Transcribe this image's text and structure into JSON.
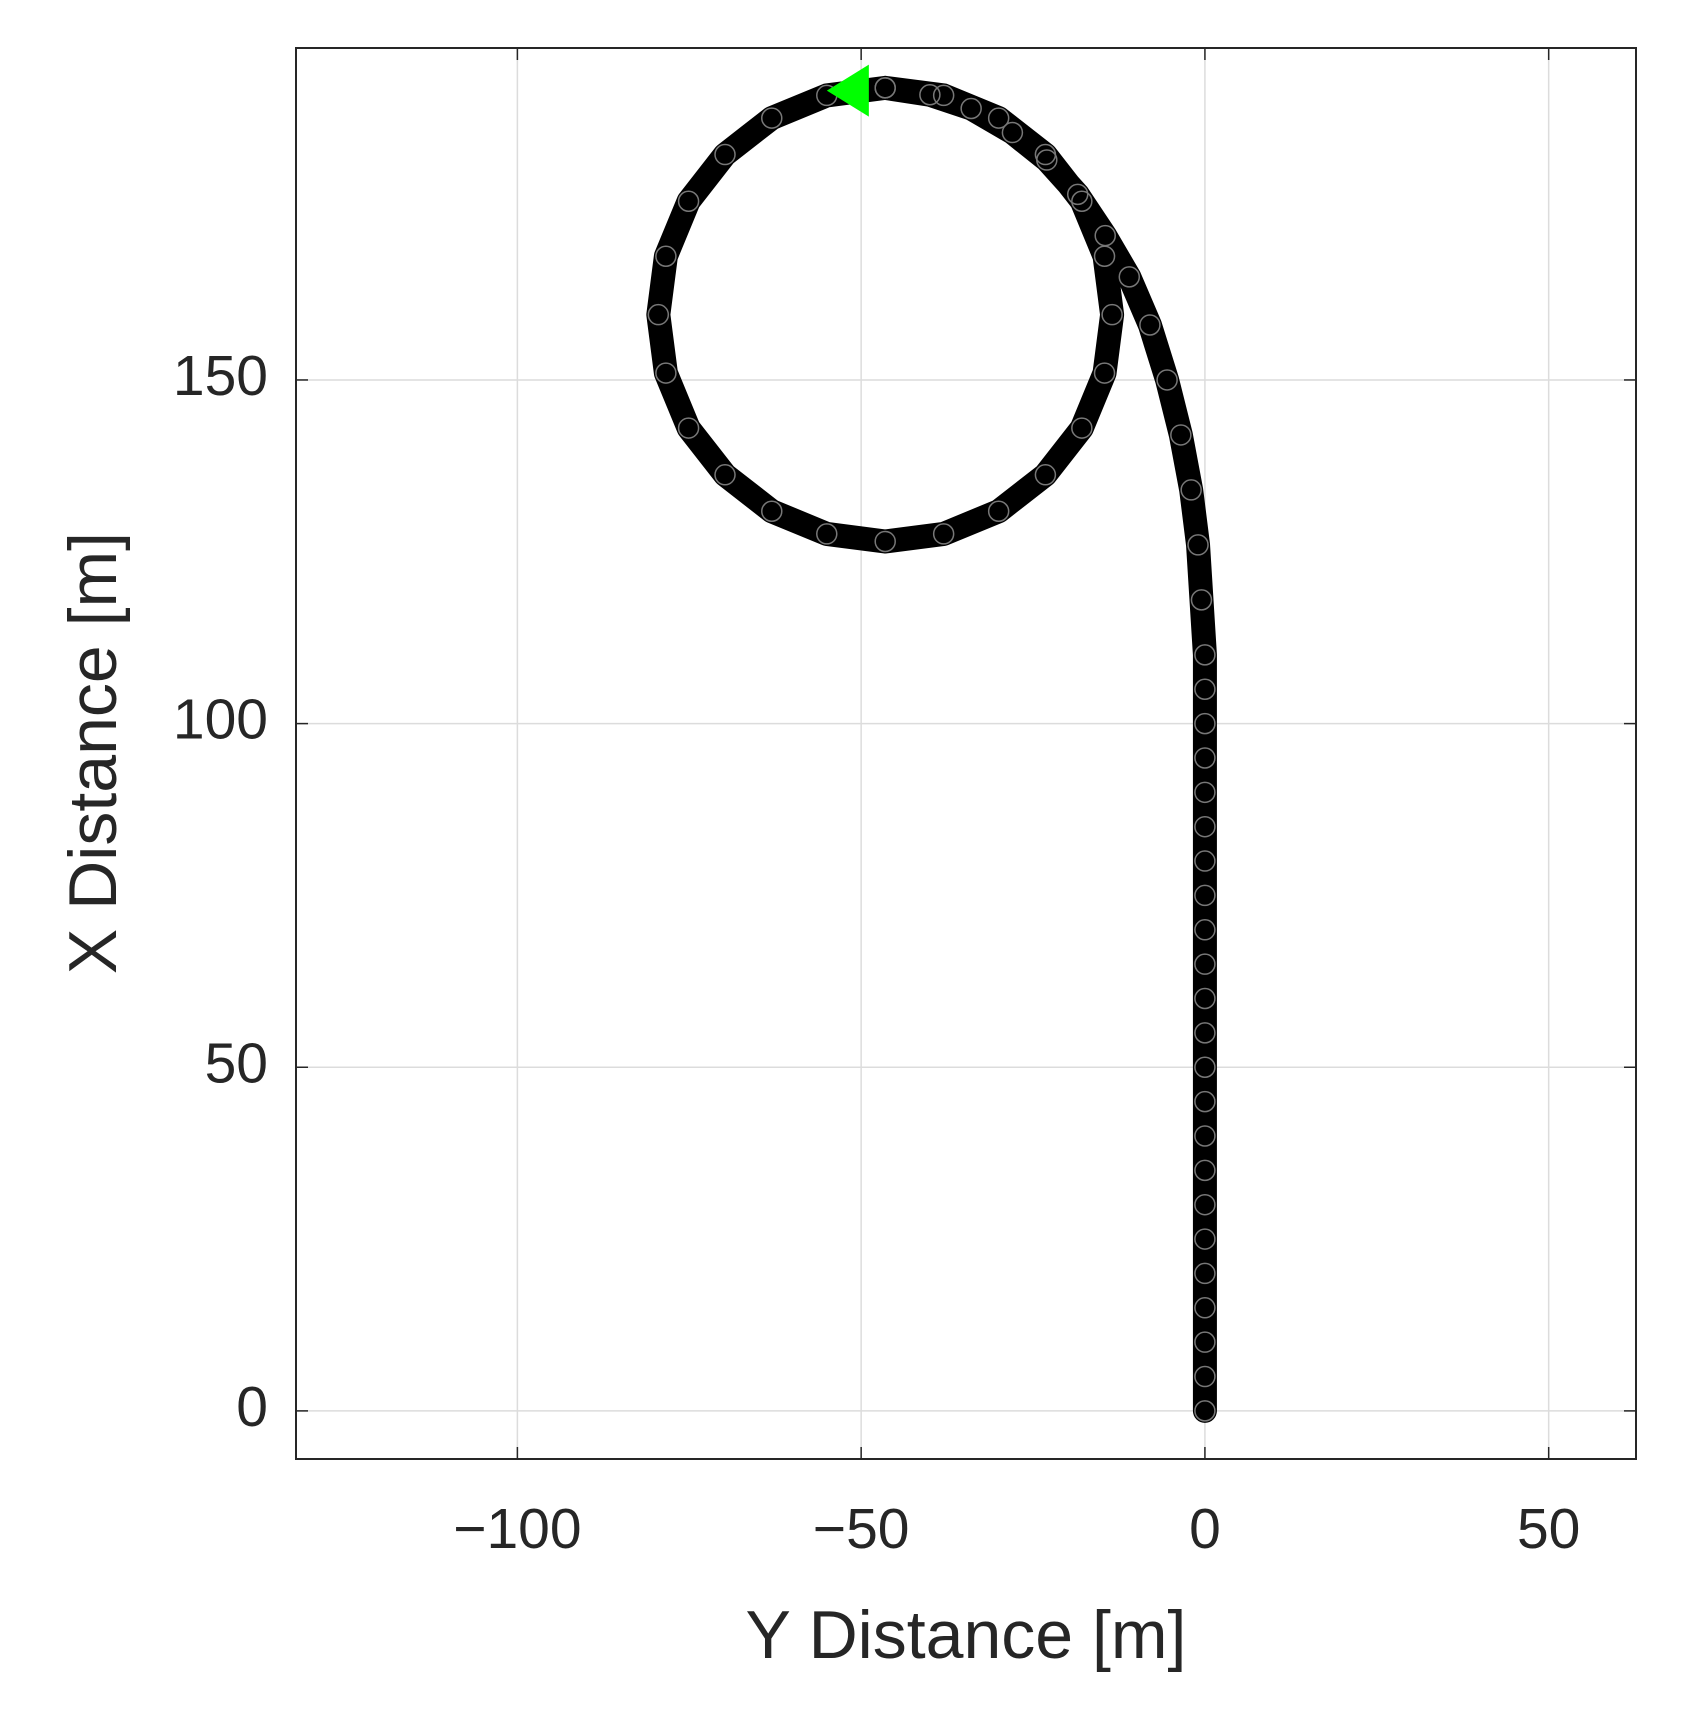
{
  "chart_data": {
    "type": "scatter",
    "xlabel": "Y Distance [m]",
    "ylabel": "X Distance [m]",
    "xlim": [
      -132.2,
      62.7
    ],
    "ylim": [
      -7,
      198.3
    ],
    "xticks": [
      {
        "value": -100,
        "label": "−100"
      },
      {
        "value": -50,
        "label": "−50"
      },
      0,
      50
    ],
    "yticks": [
      0,
      50,
      100,
      150
    ],
    "grid": true,
    "series": [
      {
        "color": "#000000",
        "marker": "o",
        "x": [
          0,
          0,
          0,
          0,
          0,
          0,
          0,
          0,
          0,
          0,
          0,
          0,
          0,
          0,
          0,
          0,
          0,
          0,
          0,
          0,
          0,
          0,
          0,
          -0.5,
          -1,
          -2,
          -3.5,
          -5.5,
          -8,
          -11,
          -14.5,
          -18.5,
          -23,
          -28,
          -34,
          -40,
          -46.5,
          -55.0,
          -63.0,
          -69.8,
          -75.1,
          -78.4,
          -79.5,
          -78.4,
          -75.1,
          -69.8,
          -63.0,
          -55.0,
          -46.5,
          -38.0,
          -30.0,
          -23.2,
          -17.9,
          -14.6,
          -13.5,
          -14.6,
          -17.9,
          -23.2,
          -30.0,
          -38.0,
          -46.5
        ],
        "values": [
          0,
          5,
          10,
          15,
          20,
          25,
          30,
          35,
          40,
          45,
          50,
          55,
          60,
          65,
          70,
          75,
          80,
          85,
          90,
          95,
          100,
          105,
          110,
          118,
          126,
          134,
          142,
          150,
          158,
          165,
          171,
          177,
          182,
          186,
          189.5,
          191.5,
          192.5,
          191.4,
          188.1,
          182.8,
          176.0,
          168.0,
          159.5,
          151.0,
          143.0,
          136.2,
          130.9,
          127.6,
          126.5,
          127.6,
          130.9,
          136.2,
          143.0,
          151.0,
          159.5,
          168.0,
          176.0,
          182.8,
          188.1,
          191.4,
          192.5
        ]
      },
      {
        "color": "#00ff00",
        "marker": "<",
        "x": [
          -51.5
        ],
        "values": [
          192.1
        ]
      }
    ]
  }
}
